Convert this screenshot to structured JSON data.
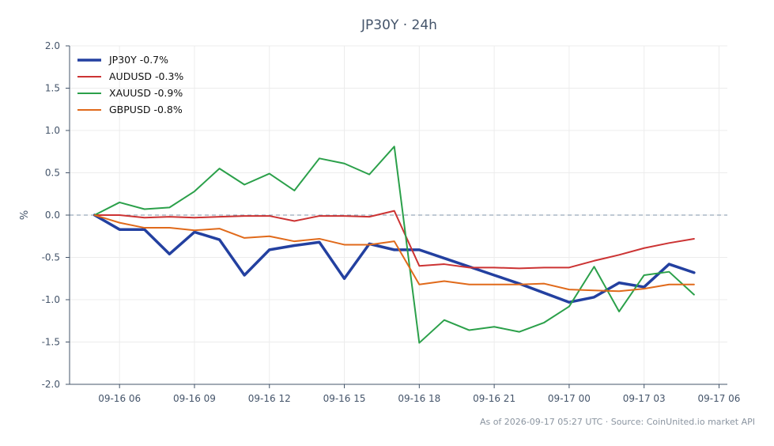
{
  "chart_data": {
    "type": "line",
    "title": "JP30Y · 24h",
    "xlabel": "",
    "ylabel": "%",
    "ylim": [
      -2.0,
      2.0
    ],
    "yticks": [
      2.0,
      1.5,
      1.0,
      0.5,
      0.0,
      -0.5,
      -1.0,
      -1.5,
      -2.0
    ],
    "xlim": [
      "09-16 04:00",
      "09-17 06:20"
    ],
    "xticks": [
      "09-16 06",
      "09-16 09",
      "09-16 12",
      "09-16 15",
      "09-16 18",
      "09-16 21",
      "09-17 00",
      "09-17 03",
      "09-17 06"
    ],
    "grid": true,
    "zero_line": true,
    "legend_position": "top-left",
    "x": [
      "09-16 05:00",
      "09-16 06:00",
      "09-16 07:00",
      "09-16 08:00",
      "09-16 09:00",
      "09-16 10:00",
      "09-16 11:00",
      "09-16 12:00",
      "09-16 13:00",
      "09-16 14:00",
      "09-16 15:00",
      "09-16 16:00",
      "09-16 17:00",
      "09-16 18:00",
      "09-16 19:00",
      "09-16 20:00",
      "09-16 21:00",
      "09-16 22:00",
      "09-16 23:00",
      "09-17 00:00",
      "09-17 01:00",
      "09-17 02:00",
      "09-17 03:00",
      "09-17 04:00",
      "09-17 05:00"
    ],
    "series": [
      {
        "name": "JP30Y -0.7%",
        "color": "#2340a0",
        "width": 3.5,
        "values": [
          0.0,
          -0.17,
          -0.17,
          -0.46,
          -0.2,
          -0.29,
          -0.71,
          -0.41,
          -0.36,
          -0.32,
          -0.75,
          -0.34,
          -0.41,
          -0.41,
          -0.51,
          -0.61,
          -0.71,
          -0.81,
          -0.92,
          -1.03,
          -0.97,
          -0.8,
          -0.85,
          -0.58,
          -0.68
        ]
      },
      {
        "name": "AUDUSD -0.3%",
        "color": "#cc3333",
        "width": 2,
        "values": [
          0.0,
          0.0,
          -0.03,
          -0.02,
          -0.03,
          -0.02,
          -0.01,
          -0.01,
          -0.07,
          -0.01,
          -0.01,
          -0.02,
          0.05,
          -0.6,
          -0.58,
          -0.62,
          -0.62,
          -0.63,
          -0.62,
          -0.62,
          -0.54,
          -0.47,
          -0.39,
          -0.33,
          -0.28
        ]
      },
      {
        "name": "XAUUSD -0.9%",
        "color": "#2ba04a",
        "width": 2,
        "values": [
          0.0,
          0.15,
          0.07,
          0.09,
          0.28,
          0.55,
          0.36,
          0.49,
          0.29,
          0.67,
          0.61,
          0.48,
          0.81,
          -1.51,
          -1.24,
          -1.36,
          -1.32,
          -1.38,
          -1.27,
          -1.08,
          -0.61,
          -1.14,
          -0.71,
          -0.67,
          -0.94
        ]
      },
      {
        "name": "GBPUSD -0.8%",
        "color": "#e06a1b",
        "width": 2,
        "values": [
          0.0,
          -0.09,
          -0.15,
          -0.15,
          -0.18,
          -0.16,
          -0.27,
          -0.25,
          -0.31,
          -0.28,
          -0.35,
          -0.35,
          -0.31,
          -0.82,
          -0.78,
          -0.82,
          -0.82,
          -0.82,
          -0.81,
          -0.88,
          -0.89,
          -0.9,
          -0.87,
          -0.82,
          -0.82
        ]
      }
    ]
  },
  "footer": "As of 2026-09-17 05:27 UTC · Source: CoinUnited.io market API"
}
